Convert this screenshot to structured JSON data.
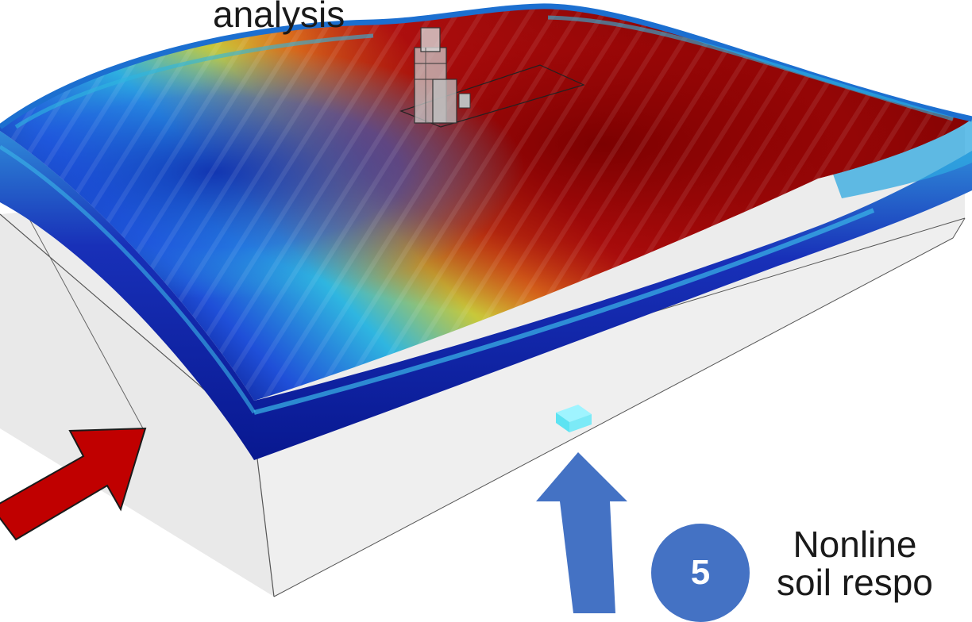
{
  "labels": {
    "top_caption": "analysis",
    "right_caption_line1": "Nonline",
    "right_caption_line2": "soil respo"
  },
  "step_badge": {
    "number": "5",
    "color": "#4472c4"
  },
  "colors": {
    "red_arrow": "#c00000",
    "blue_arrow": "#4472c4",
    "box_fill": "#ececec",
    "colormap": [
      "#0a1a8c",
      "#1f5fe0",
      "#2fb6e0",
      "#c8c83a",
      "#e07a1e",
      "#b01010",
      "#7a0000"
    ]
  },
  "icons": {
    "building": "building-model-icon",
    "source": "seismic-source-icon"
  }
}
